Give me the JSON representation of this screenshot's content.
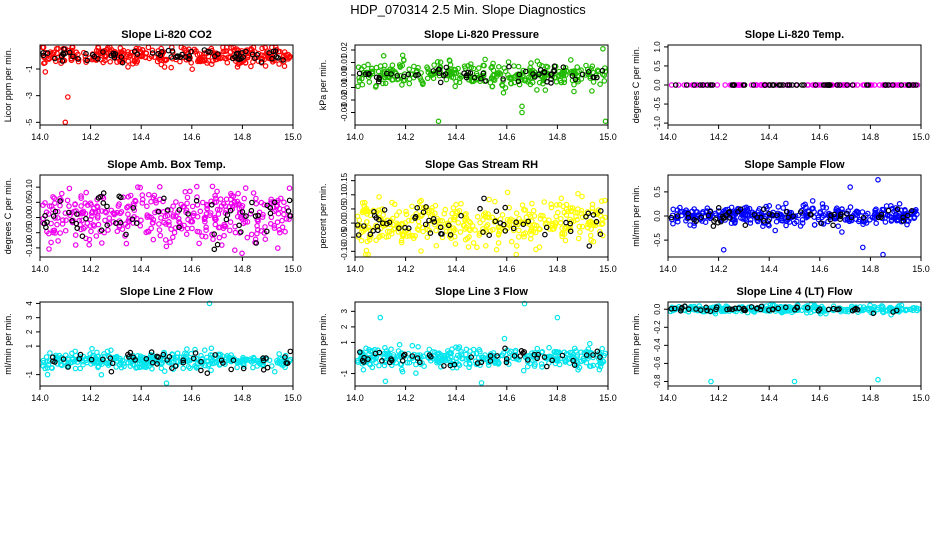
{
  "page": {
    "title": "HDP_070314  2.5 Min. Slope Diagnostics"
  },
  "chart_data": [
    {
      "type": "scatter",
      "title": "Slope Li-820 CO2",
      "ylabel": "Licor ppm per min.",
      "xlabel": "",
      "xlim": [
        14.0,
        15.0
      ],
      "ylim": [
        -5.2,
        0.8
      ],
      "xticks": [
        14.0,
        14.2,
        14.4,
        14.6,
        14.8,
        15.0
      ],
      "xtick_labels": [
        "14.0",
        "14.2",
        "14.4",
        "14.6",
        "14.8",
        "15.0"
      ],
      "yticks": [
        -5,
        -3,
        -1
      ],
      "ytick_labels": [
        "-5",
        "-3",
        "-1"
      ],
      "series": [
        {
          "name": "main",
          "color": "#ff0000",
          "n": 330,
          "center": 0.0,
          "spread": 0.35,
          "shape": "circle"
        },
        {
          "name": "highlight",
          "color": "#000000",
          "n": 70,
          "center": 0.0,
          "spread": 0.22,
          "shape": "circle"
        }
      ],
      "outliers": [
        {
          "x": 14.11,
          "y": -3.1
        },
        {
          "x": 14.1,
          "y": -5.0
        }
      ]
    },
    {
      "type": "scatter",
      "title": "Slope Li-820 Pressure",
      "ylabel": "kPa per min.",
      "xlabel": "",
      "xlim": [
        14.0,
        15.0
      ],
      "ylim": [
        -0.04,
        0.024
      ],
      "xticks": [
        14.0,
        14.2,
        14.4,
        14.6,
        14.8,
        15.0
      ],
      "xtick_labels": [
        "14.0",
        "14.2",
        "14.4",
        "14.6",
        "14.8",
        "15.0"
      ],
      "yticks": [
        -0.03,
        -0.02,
        -0.01,
        0.0,
        0.01,
        0.02
      ],
      "ytick_labels": [
        "-0.03",
        "-0.02",
        "-0.01",
        "0.00",
        "0.01",
        "0.02"
      ],
      "series": [
        {
          "name": "main",
          "color": "#22bb00",
          "n": 330,
          "center": 0.0,
          "spread": 0.005,
          "shape": "circle"
        },
        {
          "name": "highlight",
          "color": "#000000",
          "n": 60,
          "center": 0.0,
          "spread": 0.003,
          "shape": "circle"
        }
      ],
      "outliers": [
        {
          "x": 14.33,
          "y": -0.037
        },
        {
          "x": 14.99,
          "y": -0.037
        },
        {
          "x": 14.66,
          "y": -0.025
        },
        {
          "x": 14.66,
          "y": -0.03
        },
        {
          "x": 14.98,
          "y": 0.021
        }
      ]
    },
    {
      "type": "scatter",
      "title": "Slope Li-820 Temp.",
      "ylabel": "degrees C per min.",
      "xlabel": "",
      "xlim": [
        14.0,
        15.0
      ],
      "ylim": [
        -1.05,
        1.05
      ],
      "xticks": [
        14.0,
        14.2,
        14.4,
        14.6,
        14.8,
        15.0
      ],
      "xtick_labels": [
        "14.0",
        "14.2",
        "14.4",
        "14.6",
        "14.8",
        "15.0"
      ],
      "yticks": [
        -1.0,
        -0.5,
        0.0,
        0.5,
        1.0
      ],
      "ytick_labels": [
        "-1.0",
        "-0.5",
        "0.0",
        "0.5",
        "1.0"
      ],
      "series": [
        {
          "name": "main",
          "color": "#ff00ff",
          "n": 120,
          "center": 0.0,
          "spread": 0.0,
          "shape": "circle"
        },
        {
          "name": "highlight",
          "color": "#000000",
          "n": 60,
          "center": 0.0,
          "spread": 0.0,
          "shape": "circle"
        }
      ],
      "outliers": []
    },
    {
      "type": "scatter",
      "title": "Slope Amb. Box Temp.",
      "ylabel": "degrees C per min.",
      "xlabel": "",
      "xlim": [
        14.0,
        15.0
      ],
      "ylim": [
        -0.13,
        0.14
      ],
      "xticks": [
        14.0,
        14.2,
        14.4,
        14.6,
        14.8,
        15.0
      ],
      "xtick_labels": [
        "14.0",
        "14.2",
        "14.4",
        "14.6",
        "14.8",
        "15.0"
      ],
      "yticks": [
        -0.1,
        -0.05,
        0.0,
        0.05,
        0.1
      ],
      "ytick_labels": [
        "-0.10",
        "-0.05",
        "0.00",
        "0.05",
        "0.10"
      ],
      "series": [
        {
          "name": "main",
          "color": "#ee00ee",
          "n": 380,
          "center": 0.0,
          "spread": 0.045,
          "shape": "circle"
        },
        {
          "name": "highlight",
          "color": "#000000",
          "n": 60,
          "center": 0.0,
          "spread": 0.04,
          "shape": "circle"
        }
      ],
      "outliers": []
    },
    {
      "type": "scatter",
      "title": "Slope Gas Stream RH",
      "ylabel": "percent per min.",
      "xlabel": "",
      "xlim": [
        14.0,
        15.0
      ],
      "ylim": [
        -0.12,
        0.17
      ],
      "xticks": [
        14.0,
        14.2,
        14.4,
        14.6,
        14.8,
        15.0
      ],
      "xtick_labels": [
        "14.0",
        "14.2",
        "14.4",
        "14.6",
        "14.8",
        "15.0"
      ],
      "yticks": [
        -0.1,
        -0.05,
        0.0,
        0.05,
        0.1,
        0.15
      ],
      "ytick_labels": [
        "-0.10",
        "-0.05",
        "0.00",
        "0.05",
        "0.10",
        "0.15"
      ],
      "series": [
        {
          "name": "main",
          "color": "#ffff00",
          "n": 380,
          "center": 0.0,
          "spread": 0.04,
          "shape": "circle"
        },
        {
          "name": "highlight",
          "color": "#000000",
          "n": 60,
          "center": 0.0,
          "spread": 0.035,
          "shape": "circle"
        }
      ],
      "outliers": []
    },
    {
      "type": "scatter",
      "title": "Slope Sample Flow",
      "ylabel": "ml/min per min.",
      "xlabel": "",
      "xlim": [
        14.0,
        15.0
      ],
      "ylim": [
        -0.85,
        0.85
      ],
      "xticks": [
        14.0,
        14.2,
        14.4,
        14.6,
        14.8,
        15.0
      ],
      "xtick_labels": [
        "14.0",
        "14.2",
        "14.4",
        "14.6",
        "14.8",
        "15.0"
      ],
      "yticks": [
        -0.5,
        0.0,
        0.5
      ],
      "ytick_labels": [
        "-0.5",
        "0.0",
        "0.5"
      ],
      "series": [
        {
          "name": "main",
          "color": "#0000ff",
          "n": 360,
          "center": 0.0,
          "spread": 0.1,
          "shape": "circle"
        },
        {
          "name": "highlight",
          "color": "#000000",
          "n": 60,
          "center": 0.0,
          "spread": 0.08,
          "shape": "circle"
        }
      ],
      "outliers": [
        {
          "x": 14.72,
          "y": 0.6
        },
        {
          "x": 14.83,
          "y": 0.75
        },
        {
          "x": 14.22,
          "y": -0.7
        },
        {
          "x": 14.85,
          "y": -0.8
        },
        {
          "x": 14.77,
          "y": -0.65
        }
      ]
    },
    {
      "type": "scatter",
      "title": "Slope Line 2 Flow",
      "ylabel": "ml/min per min.",
      "xlabel": "",
      "xlim": [
        14.0,
        15.0
      ],
      "ylim": [
        -1.8,
        4.1
      ],
      "xticks": [
        14.0,
        14.2,
        14.4,
        14.6,
        14.8,
        15.0
      ],
      "xtick_labels": [
        "14.0",
        "14.2",
        "14.4",
        "14.6",
        "14.8",
        "15.0"
      ],
      "yticks": [
        -1,
        1,
        2,
        3,
        4
      ],
      "ytick_labels": [
        "-1",
        "1",
        "2",
        "3",
        "4"
      ],
      "series": [
        {
          "name": "main",
          "color": "#00e5ee",
          "n": 340,
          "center": 0.0,
          "spread": 0.3,
          "shape": "circle"
        },
        {
          "name": "highlight",
          "color": "#000000",
          "n": 50,
          "center": 0.0,
          "spread": 0.3,
          "shape": "circle"
        }
      ],
      "outliers": [
        {
          "x": 14.67,
          "y": 4.0
        },
        {
          "x": 14.5,
          "y": -1.6
        },
        {
          "x": 14.03,
          "y": -1.0
        }
      ]
    },
    {
      "type": "scatter",
      "title": "Slope Line 3 Flow",
      "ylabel": "ml/min per min.",
      "xlabel": "",
      "xlim": [
        14.0,
        15.0
      ],
      "ylim": [
        -1.8,
        3.6
      ],
      "xticks": [
        14.0,
        14.2,
        14.4,
        14.6,
        14.8,
        15.0
      ],
      "xtick_labels": [
        "14.0",
        "14.2",
        "14.4",
        "14.6",
        "14.8",
        "15.0"
      ],
      "yticks": [
        -1,
        1,
        2,
        3
      ],
      "ytick_labels": [
        "-1",
        "1",
        "2",
        "3"
      ],
      "series": [
        {
          "name": "main",
          "color": "#00e5ee",
          "n": 340,
          "center": 0.0,
          "spread": 0.35,
          "shape": "circle"
        },
        {
          "name": "highlight",
          "color": "#000000",
          "n": 50,
          "center": 0.0,
          "spread": 0.25,
          "shape": "circle"
        }
      ],
      "outliers": [
        {
          "x": 14.67,
          "y": 3.5
        },
        {
          "x": 14.1,
          "y": 2.6
        },
        {
          "x": 14.8,
          "y": 2.6
        },
        {
          "x": 14.12,
          "y": -1.5
        },
        {
          "x": 14.5,
          "y": -1.6
        }
      ]
    },
    {
      "type": "scatter",
      "title": "Slope Line 4 (LT) Flow",
      "ylabel": "ml/min per min.",
      "xlabel": "",
      "xlim": [
        14.0,
        15.0
      ],
      "ylim": [
        -0.85,
        0.08
      ],
      "xticks": [
        14.0,
        14.2,
        14.4,
        14.6,
        14.8,
        15.0
      ],
      "xtick_labels": [
        "14.0",
        "14.2",
        "14.4",
        "14.6",
        "14.8",
        "15.0"
      ],
      "yticks": [
        -0.8,
        -0.6,
        -0.4,
        -0.2,
        0.0
      ],
      "ytick_labels": [
        "-0.8",
        "-0.6",
        "-0.4",
        "-0.2",
        "0.0"
      ],
      "series": [
        {
          "name": "main",
          "color": "#00e5ee",
          "n": 300,
          "center": 0.0,
          "spread": 0.02,
          "shape": "circle"
        },
        {
          "name": "highlight",
          "color": "#000000",
          "n": 50,
          "center": 0.0,
          "spread": 0.015,
          "shape": "circle"
        }
      ],
      "outliers": [
        {
          "x": 14.17,
          "y": -0.8
        },
        {
          "x": 14.5,
          "y": -0.8
        },
        {
          "x": 14.83,
          "y": -0.78
        }
      ]
    }
  ]
}
